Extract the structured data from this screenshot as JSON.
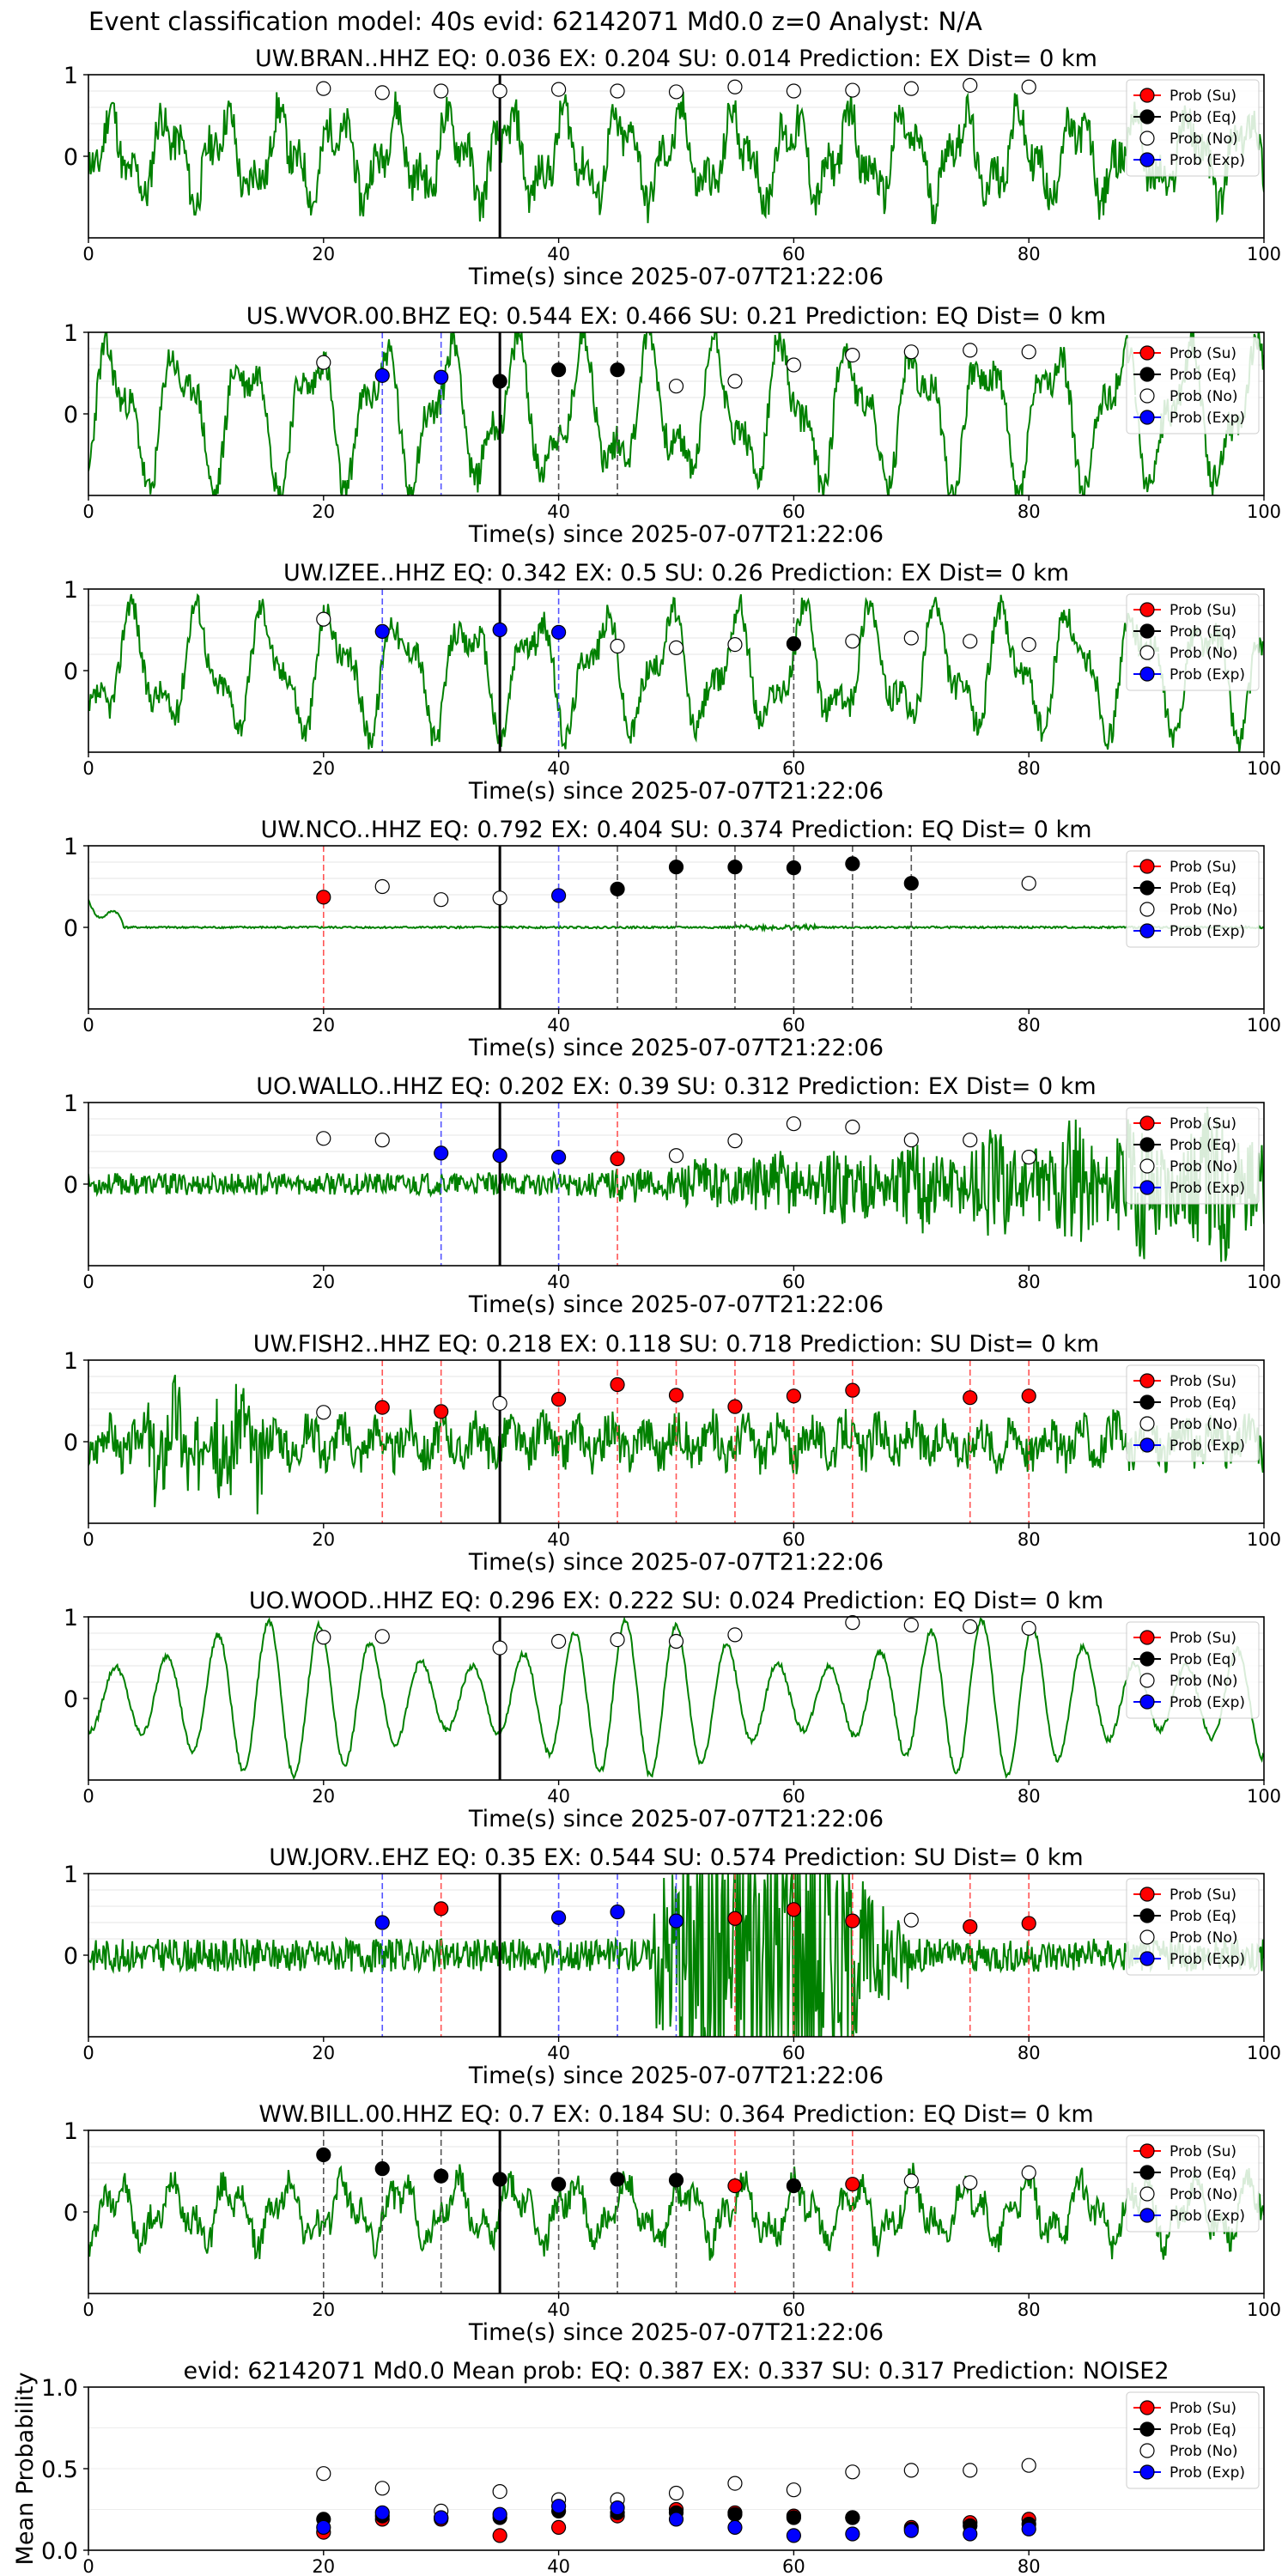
{
  "suptitle": "Event classification model: 40s evid: 62142071 Md0.0 z=0 Analyst: N/A",
  "colors": {
    "waveform": "#008000",
    "su": "#ff0000",
    "eq": "#000000",
    "no": "#ffffff",
    "exp": "#0000ff",
    "su_line": "#ff5555",
    "eq_line": "#555555",
    "exp_line": "#5555ff",
    "origin_line": "#000000"
  },
  "legend": [
    "Prob (Su)",
    "Prob (Eq)",
    "Prob (No)",
    "Prob (Exp)"
  ],
  "chart_data": [
    {
      "type": "line",
      "title": "UW.BRAN..HHZ   EQ: 0.036  EX: 0.204  SU: 0.014   Prediction: EX    Dist= 0 km",
      "xlabel": "Time(s) since 2025-07-07T21:22:06",
      "ylabel": "",
      "xlim": [
        0,
        100
      ],
      "ylim": [
        -1,
        1
      ],
      "xticks": [
        0,
        20,
        40,
        60,
        80,
        100
      ],
      "yticks": [
        0,
        1
      ],
      "legend_position": "top-right",
      "origin_time": 35,
      "waveform": {
        "style": "noisy",
        "amplitude": 0.55,
        "seed": 11
      },
      "series": [
        {
          "name": "Prob (No)",
          "x": [
            20,
            25,
            30,
            35,
            40,
            45,
            50,
            55,
            60,
            65,
            70,
            75,
            80
          ],
          "y": [
            0.83,
            0.78,
            0.8,
            0.8,
            0.82,
            0.8,
            0.79,
            0.85,
            0.8,
            0.81,
            0.83,
            0.87,
            0.85
          ]
        }
      ],
      "vlines": []
    },
    {
      "type": "line",
      "title": "US.WVOR.00.BHZ   EQ: 0.544  EX: 0.466  SU: 0.21   Prediction: EQ    Dist= 0 km",
      "xlabel": "Time(s) since 2025-07-07T21:22:06",
      "ylabel": "",
      "xlim": [
        0,
        100
      ],
      "ylim": [
        -1,
        1
      ],
      "xticks": [
        0,
        20,
        40,
        60,
        80,
        100
      ],
      "yticks": [
        0,
        1
      ],
      "legend_position": "top-right",
      "origin_time": 35,
      "waveform": {
        "style": "oscillating",
        "amplitude": 0.7,
        "seed": 23
      },
      "series": [
        {
          "name": "Prob (No)",
          "x": [
            20,
            50,
            55,
            60,
            65,
            70,
            75,
            80
          ],
          "y": [
            0.63,
            0.34,
            0.4,
            0.6,
            0.72,
            0.76,
            0.78,
            0.76
          ]
        },
        {
          "name": "Prob (Exp)",
          "x": [
            25,
            30
          ],
          "y": [
            0.47,
            0.45
          ]
        },
        {
          "name": "Prob (Eq)",
          "x": [
            35,
            40,
            45
          ],
          "y": [
            0.4,
            0.54,
            0.54
          ]
        }
      ],
      "vlines": [
        {
          "x": 25,
          "class": "exp"
        },
        {
          "x": 30,
          "class": "exp"
        },
        {
          "x": 40,
          "class": "eq"
        },
        {
          "x": 45,
          "class": "eq"
        }
      ]
    },
    {
      "type": "line",
      "title": "UW.IZEE..HHZ   EQ: 0.342  EX: 0.5  SU: 0.26   Prediction: EX    Dist= 0 km",
      "xlabel": "Time(s) since 2025-07-07T21:22:06",
      "ylabel": "",
      "xlim": [
        0,
        100
      ],
      "ylim": [
        -1,
        1
      ],
      "xticks": [
        0,
        20,
        40,
        60,
        80,
        100
      ],
      "yticks": [
        0,
        1
      ],
      "legend_position": "top-right",
      "origin_time": 35,
      "waveform": {
        "style": "oscillating",
        "amplitude": 0.6,
        "seed": 37
      },
      "series": [
        {
          "name": "Prob (No)",
          "x": [
            20,
            45,
            50,
            55,
            65,
            70,
            75,
            80
          ],
          "y": [
            0.63,
            0.3,
            0.28,
            0.32,
            0.36,
            0.4,
            0.36,
            0.32
          ]
        },
        {
          "name": "Prob (Exp)",
          "x": [
            25,
            35,
            40
          ],
          "y": [
            0.48,
            0.5,
            0.47
          ]
        },
        {
          "name": "Prob (Eq)",
          "x": [
            60
          ],
          "y": [
            0.33
          ]
        }
      ],
      "vlines": [
        {
          "x": 25,
          "class": "exp"
        },
        {
          "x": 40,
          "class": "exp"
        },
        {
          "x": 60,
          "class": "eq"
        }
      ]
    },
    {
      "type": "line",
      "title": "UW.NCO..HHZ   EQ: 0.792  EX: 0.404  SU: 0.374   Prediction: EQ    Dist= 0 km",
      "xlabel": "Time(s) since 2025-07-07T21:22:06",
      "ylabel": "",
      "xlim": [
        0,
        100
      ],
      "ylim": [
        -1,
        1
      ],
      "xticks": [
        0,
        20,
        40,
        60,
        80,
        100
      ],
      "yticks": [
        0,
        1
      ],
      "legend_position": "top-right",
      "origin_time": 35,
      "waveform": {
        "style": "quiet",
        "amplitude": 0.06,
        "seed": 41
      },
      "series": [
        {
          "name": "Prob (Su)",
          "x": [
            20
          ],
          "y": [
            0.37
          ]
        },
        {
          "name": "Prob (No)",
          "x": [
            25,
            30,
            35,
            80
          ],
          "y": [
            0.5,
            0.34,
            0.36,
            0.54
          ]
        },
        {
          "name": "Prob (Exp)",
          "x": [
            40
          ],
          "y": [
            0.39
          ]
        },
        {
          "name": "Prob (Eq)",
          "x": [
            45,
            50,
            55,
            60,
            65,
            70
          ],
          "y": [
            0.47,
            0.74,
            0.74,
            0.73,
            0.78,
            0.54
          ]
        }
      ],
      "vlines": [
        {
          "x": 20,
          "class": "su"
        },
        {
          "x": 40,
          "class": "exp"
        },
        {
          "x": 45,
          "class": "eq"
        },
        {
          "x": 50,
          "class": "eq"
        },
        {
          "x": 55,
          "class": "eq"
        },
        {
          "x": 60,
          "class": "eq"
        },
        {
          "x": 65,
          "class": "eq"
        },
        {
          "x": 70,
          "class": "eq"
        }
      ]
    },
    {
      "type": "line",
      "title": "UO.WALLO..HHZ   EQ: 0.202  EX: 0.39  SU: 0.312   Prediction: EX    Dist= 0 km",
      "xlabel": "Time(s) since 2025-07-07T21:22:06",
      "ylabel": "",
      "xlim": [
        0,
        100
      ],
      "ylim": [
        -1,
        1
      ],
      "xticks": [
        0,
        20,
        40,
        60,
        80,
        100
      ],
      "yticks": [
        0,
        1
      ],
      "legend_position": "top-right",
      "origin_time": 35,
      "waveform": {
        "style": "growing",
        "amplitude": 0.3,
        "seed": 53
      },
      "series": [
        {
          "name": "Prob (No)",
          "x": [
            20,
            25,
            50,
            55,
            60,
            65,
            70,
            75,
            80
          ],
          "y": [
            0.56,
            0.54,
            0.35,
            0.53,
            0.74,
            0.7,
            0.54,
            0.54,
            0.33
          ]
        },
        {
          "name": "Prob (Exp)",
          "x": [
            30,
            35,
            40
          ],
          "y": [
            0.38,
            0.35,
            0.33
          ]
        },
        {
          "name": "Prob (Su)",
          "x": [
            45
          ],
          "y": [
            0.31
          ]
        }
      ],
      "vlines": [
        {
          "x": 30,
          "class": "exp"
        },
        {
          "x": 40,
          "class": "exp"
        },
        {
          "x": 45,
          "class": "su"
        }
      ]
    },
    {
      "type": "line",
      "title": "UW.FISH2..HHZ   EQ: 0.218  EX: 0.118  SU: 0.718   Prediction: SU    Dist= 0 km",
      "xlabel": "Time(s) since 2025-07-07T21:22:06",
      "ylabel": "",
      "xlim": [
        0,
        100
      ],
      "ylim": [
        -1,
        1
      ],
      "xticks": [
        0,
        20,
        40,
        60,
        80,
        100
      ],
      "yticks": [
        0,
        1
      ],
      "legend_position": "top-right",
      "origin_time": 35,
      "waveform": {
        "style": "burst_early",
        "amplitude": 0.45,
        "seed": 67
      },
      "series": [
        {
          "name": "Prob (No)",
          "x": [
            20,
            35
          ],
          "y": [
            0.36,
            0.47
          ]
        },
        {
          "name": "Prob (Su)",
          "x": [
            25,
            30,
            40,
            45,
            50,
            55,
            60,
            65,
            75,
            80
          ],
          "y": [
            0.42,
            0.37,
            0.52,
            0.7,
            0.57,
            0.43,
            0.56,
            0.63,
            0.54,
            0.56
          ]
        }
      ],
      "vlines": [
        {
          "x": 25,
          "class": "su"
        },
        {
          "x": 30,
          "class": "su"
        },
        {
          "x": 40,
          "class": "su"
        },
        {
          "x": 45,
          "class": "su"
        },
        {
          "x": 50,
          "class": "su"
        },
        {
          "x": 55,
          "class": "su"
        },
        {
          "x": 60,
          "class": "su"
        },
        {
          "x": 65,
          "class": "su"
        },
        {
          "x": 75,
          "class": "su"
        },
        {
          "x": 80,
          "class": "su"
        }
      ]
    },
    {
      "type": "line",
      "title": "UO.WOOD..HHZ   EQ: 0.296  EX: 0.222  SU: 0.024   Prediction: EQ    Dist= 0 km",
      "xlabel": "Time(s) since 2025-07-07T21:22:06",
      "ylabel": "",
      "xlim": [
        0,
        100
      ],
      "ylim": [
        -1,
        1
      ],
      "xticks": [
        0,
        20,
        40,
        60,
        80,
        100
      ],
      "yticks": [
        0,
        1
      ],
      "legend_position": "top-right",
      "origin_time": 35,
      "waveform": {
        "style": "smooth",
        "amplitude": 0.75,
        "seed": 79
      },
      "series": [
        {
          "name": "Prob (No)",
          "x": [
            20,
            25,
            35,
            40,
            45,
            50,
            55,
            65,
            70,
            75,
            80
          ],
          "y": [
            0.75,
            0.76,
            0.62,
            0.7,
            0.72,
            0.7,
            0.78,
            0.93,
            0.9,
            0.88,
            0.86
          ]
        }
      ],
      "vlines": []
    },
    {
      "type": "line",
      "title": "UW.JORV..EHZ   EQ: 0.35  EX: 0.544  SU: 0.574   Prediction: SU    Dist= 0 km",
      "xlabel": "Time(s) since 2025-07-07T21:22:06",
      "ylabel": "",
      "xlim": [
        0,
        100
      ],
      "ylim": [
        -1,
        1
      ],
      "xticks": [
        0,
        20,
        40,
        60,
        80,
        100
      ],
      "yticks": [
        0,
        1
      ],
      "legend_position": "top-right",
      "origin_time": 35,
      "waveform": {
        "style": "burst_mid",
        "amplitude": 0.8,
        "seed": 83
      },
      "series": [
        {
          "name": "Prob (Exp)",
          "x": [
            25,
            40,
            45,
            50
          ],
          "y": [
            0.4,
            0.46,
            0.53,
            0.42
          ]
        },
        {
          "name": "Prob (Su)",
          "x": [
            30,
            55,
            60,
            65,
            75,
            80
          ],
          "y": [
            0.57,
            0.45,
            0.56,
            0.42,
            0.35,
            0.39
          ]
        },
        {
          "name": "Prob (No)",
          "x": [
            70
          ],
          "y": [
            0.43
          ]
        }
      ],
      "vlines": [
        {
          "x": 25,
          "class": "exp"
        },
        {
          "x": 30,
          "class": "su"
        },
        {
          "x": 40,
          "class": "exp"
        },
        {
          "x": 45,
          "class": "exp"
        },
        {
          "x": 50,
          "class": "exp"
        },
        {
          "x": 55,
          "class": "su"
        },
        {
          "x": 60,
          "class": "su"
        },
        {
          "x": 65,
          "class": "su"
        },
        {
          "x": 75,
          "class": "su"
        },
        {
          "x": 80,
          "class": "su"
        }
      ]
    },
    {
      "type": "line",
      "title": "WW.BILL.00.HHZ   EQ: 0.7  EX: 0.184  SU: 0.364   Prediction: EQ    Dist= 0 km",
      "xlabel": "Time(s) since 2025-07-07T21:22:06",
      "ylabel": "",
      "xlim": [
        0,
        100
      ],
      "ylim": [
        -1,
        1
      ],
      "xticks": [
        0,
        20,
        40,
        60,
        80,
        100
      ],
      "yticks": [
        0,
        1
      ],
      "legend_position": "top-right",
      "origin_time": 35,
      "waveform": {
        "style": "noisy",
        "amplitude": 0.4,
        "seed": 97
      },
      "series": [
        {
          "name": "Prob (Eq)",
          "x": [
            20,
            25,
            30,
            35,
            40,
            45,
            50,
            60
          ],
          "y": [
            0.7,
            0.53,
            0.44,
            0.4,
            0.34,
            0.4,
            0.39,
            0.32
          ]
        },
        {
          "name": "Prob (Su)",
          "x": [
            55,
            65
          ],
          "y": [
            0.32,
            0.34
          ]
        },
        {
          "name": "Prob (No)",
          "x": [
            70,
            75,
            80
          ],
          "y": [
            0.38,
            0.36,
            0.48
          ]
        }
      ],
      "vlines": [
        {
          "x": 20,
          "class": "eq"
        },
        {
          "x": 25,
          "class": "eq"
        },
        {
          "x": 30,
          "class": "eq"
        },
        {
          "x": 40,
          "class": "eq"
        },
        {
          "x": 45,
          "class": "eq"
        },
        {
          "x": 50,
          "class": "eq"
        },
        {
          "x": 55,
          "class": "su"
        },
        {
          "x": 60,
          "class": "eq"
        },
        {
          "x": 65,
          "class": "su"
        }
      ]
    },
    {
      "type": "scatter",
      "title": "evid: 62142071  Md0.0   Mean prob:   EQ: 0.387  EX: 0.337  SU: 0.317   Prediction: NOISE2",
      "xlabel": "",
      "ylabel": "Mean Probability",
      "xlim": [
        0,
        100
      ],
      "ylim": [
        0,
        1
      ],
      "xticks": [
        0,
        20,
        40,
        60,
        80
      ],
      "yticks": [
        0.0,
        0.5,
        1.0
      ],
      "ytick_labels": [
        "0.0",
        "0.5",
        "1.0"
      ],
      "legend_position": "top-right",
      "series": [
        {
          "name": "Prob (Su)",
          "x": [
            20,
            25,
            30,
            35,
            40,
            45,
            50,
            55,
            60,
            65,
            70,
            75,
            80
          ],
          "y": [
            0.11,
            0.19,
            0.19,
            0.09,
            0.14,
            0.21,
            0.25,
            0.23,
            0.21,
            0.2,
            0.14,
            0.17,
            0.19
          ]
        },
        {
          "name": "Prob (Eq)",
          "x": [
            20,
            25,
            30,
            35,
            40,
            45,
            50,
            55,
            60,
            65,
            70,
            75,
            80
          ],
          "y": [
            0.19,
            0.21,
            0.2,
            0.2,
            0.24,
            0.23,
            0.23,
            0.22,
            0.2,
            0.2,
            0.13,
            0.15,
            0.16
          ]
        },
        {
          "name": "Prob (No)",
          "x": [
            20,
            25,
            30,
            35,
            40,
            45,
            50,
            55,
            60,
            65,
            70,
            75,
            80
          ],
          "y": [
            0.47,
            0.38,
            0.24,
            0.36,
            0.31,
            0.31,
            0.35,
            0.41,
            0.37,
            0.48,
            0.49,
            0.49,
            0.52
          ]
        },
        {
          "name": "Prob (Exp)",
          "x": [
            20,
            25,
            30,
            35,
            40,
            45,
            50,
            55,
            60,
            65,
            70,
            75,
            80
          ],
          "y": [
            0.14,
            0.23,
            0.2,
            0.22,
            0.27,
            0.26,
            0.19,
            0.14,
            0.09,
            0.1,
            0.12,
            0.1,
            0.13
          ]
        }
      ],
      "vlines": []
    }
  ]
}
